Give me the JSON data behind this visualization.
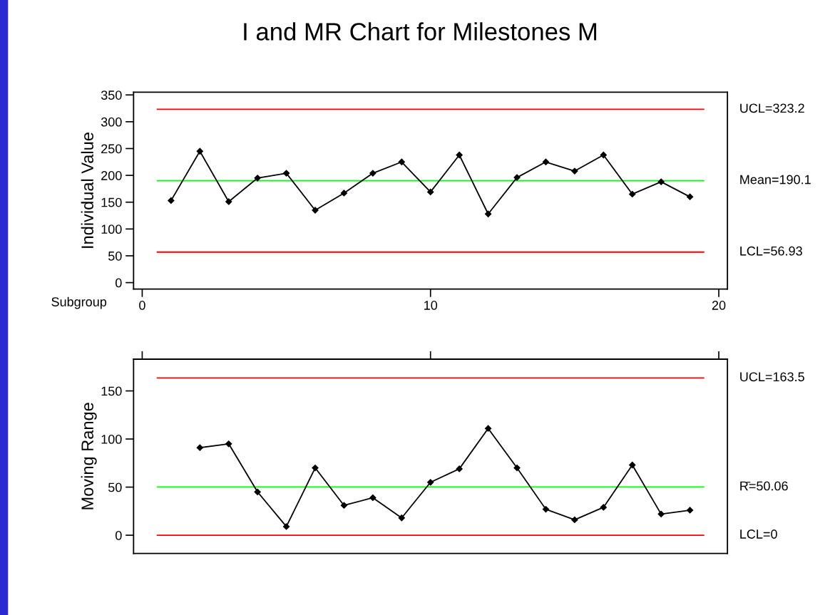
{
  "chart_data": [
    {
      "type": "line",
      "title": "I and MR Chart for Milestones M",
      "ylabel": "Individual Value",
      "xlabel": "Subgroup",
      "series": [
        {
          "color": "#000000",
          "x": [
            1,
            2,
            3,
            4,
            5,
            6,
            7,
            8,
            9,
            10,
            11,
            12,
            13,
            14,
            15,
            16,
            17,
            18,
            19
          ],
          "values": [
            153,
            245,
            151,
            195,
            204,
            135,
            167,
            204,
            225,
            169,
            238,
            128,
            196,
            225,
            208,
            238,
            165,
            188,
            160
          ]
        }
      ],
      "marker": "diamond",
      "line_style": "solid",
      "grid": false,
      "legend": false,
      "xlim": [
        -0.3,
        20.3
      ],
      "xticks": [
        0,
        10,
        20
      ],
      "ylim": [
        -12,
        355
      ],
      "yticks": [
        0,
        50,
        100,
        150,
        200,
        250,
        300,
        350
      ],
      "ref_lines": [
        {
          "axis": "y",
          "value": 323.2,
          "label": "UCL=323.2",
          "color": "#ff0000",
          "line_style": "solid"
        },
        {
          "axis": "y",
          "value": 190.1,
          "label": "Mean=190.1",
          "color": "#00ff00",
          "line_style": "solid"
        },
        {
          "axis": "y",
          "value": 56.93,
          "label": "LCL=56.93",
          "color": "#ff0000",
          "line_style": "solid"
        }
      ]
    },
    {
      "type": "line",
      "ylabel": "Moving Range",
      "series": [
        {
          "color": "#000000",
          "x": [
            2,
            3,
            4,
            5,
            6,
            7,
            8,
            9,
            10,
            11,
            12,
            13,
            14,
            15,
            16,
            17,
            18,
            19
          ],
          "values": [
            91,
            95,
            45,
            9,
            70,
            31,
            39,
            18,
            55,
            69,
            111,
            70,
            27,
            16,
            29,
            73,
            22,
            26
          ]
        }
      ],
      "marker": "diamond",
      "line_style": "solid",
      "grid": false,
      "legend": false,
      "tick_labels": "y",
      "xlim": [
        -0.3,
        20.3
      ],
      "xticks": [
        0,
        10,
        20
      ],
      "ylim": [
        -19,
        183
      ],
      "yticks": [
        0,
        50,
        100,
        150
      ],
      "ref_lines": [
        {
          "axis": "y",
          "value": 163.5,
          "label": "UCL=163.5",
          "color": "#ff0000",
          "line_style": "solid"
        },
        {
          "axis": "y",
          "value": 50.06,
          "label": "R̄=50.06",
          "color": "#00ff00",
          "line_style": "solid"
        },
        {
          "axis": "y",
          "value": 0,
          "label": "LCL=0",
          "color": "#ff0000",
          "line_style": "solid"
        }
      ]
    }
  ]
}
